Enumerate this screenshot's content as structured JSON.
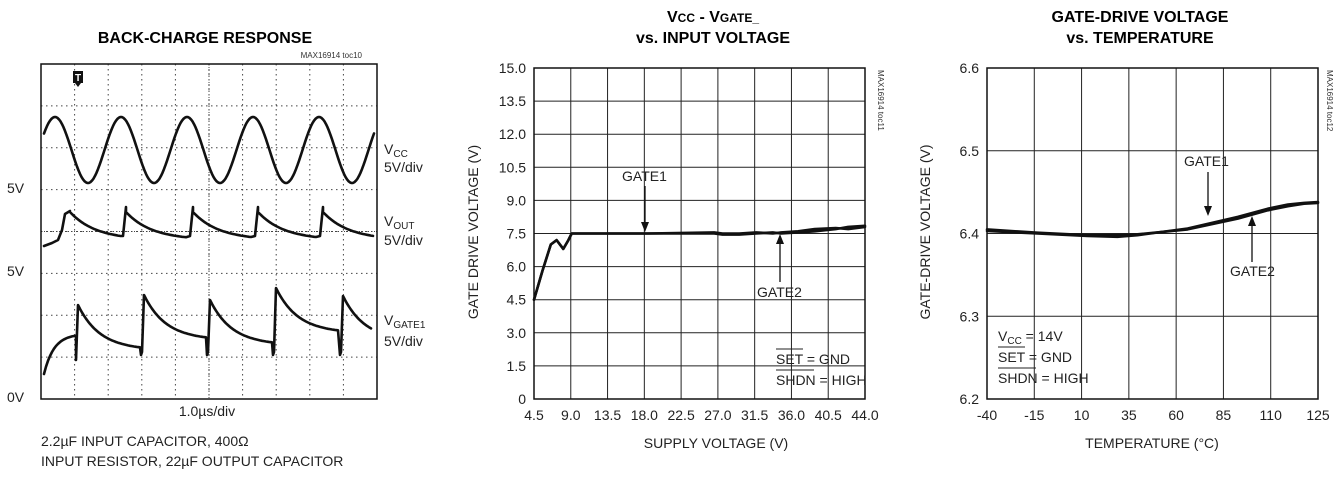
{
  "chart_data": [
    {
      "type": "line",
      "title": "BACK-CHARGE RESPONSE",
      "code": "MAX16914 toc10",
      "xlabel": "1.0µs/div",
      "caption": [
        "2.2µF INPUT CAPACITOR, 400Ω",
        "INPUT RESISTOR, 22µF OUTPUT CAPACITOR"
      ],
      "grid_divisions": {
        "x": 10,
        "y": 8
      },
      "marker": "T",
      "level_labels": [
        "5V",
        "5V",
        "0V"
      ],
      "series": [
        {
          "name": "VCC",
          "name_base": "V",
          "name_sub": "CC",
          "scale": "5V/div",
          "shape": "sine",
          "cycles": 5
        },
        {
          "name": "VOUT",
          "name_base": "V",
          "name_sub": "OUT",
          "scale": "5V/div",
          "shape": "sawtooth-decay",
          "cycles": 5
        },
        {
          "name": "VGATE1",
          "name_base": "V",
          "name_sub": "GATE1",
          "scale": "5V/div",
          "shape": "sawtooth-jump",
          "cycles": 5
        }
      ]
    },
    {
      "type": "line",
      "title_parts": [
        "V",
        "CC",
        " - V",
        "GATE_"
      ],
      "title_line2": "vs. INPUT VOLTAGE",
      "code": "MAX16914 toc11",
      "xlabel": "SUPPLY VOLTAGE (V)",
      "ylabel": "GATE DRIVE VOLTAGE (V)",
      "xlim": [
        4.5,
        44.0
      ],
      "ylim": [
        0,
        15.0
      ],
      "xticks": [
        "4.5",
        "9.0",
        "13.5",
        "18.0",
        "22.5",
        "27.0",
        "31.5",
        "36.0",
        "40.5",
        "44.0"
      ],
      "yticks": [
        "0",
        "1.5",
        "3.0",
        "4.5",
        "6.0",
        "7.5",
        "9.0",
        "10.5",
        "12.0",
        "13.5",
        "15.0"
      ],
      "grid": true,
      "series": [
        {
          "name": "GATE1",
          "x": [
            4.5,
            5.5,
            6.5,
            7.2,
            8.0,
            8.6,
            9.0,
            18.0,
            26.0,
            27.0,
            29.0,
            31.0,
            33.0,
            34.0,
            36.0,
            38.0,
            40.5,
            42.0,
            44.0
          ],
          "y": [
            4.5,
            5.8,
            7.0,
            7.2,
            6.8,
            7.2,
            7.5,
            7.5,
            7.5,
            7.45,
            7.45,
            7.5,
            7.55,
            7.5,
            7.55,
            7.6,
            7.7,
            7.8,
            7.85
          ]
        },
        {
          "name": "GATE2",
          "x": [
            4.5,
            5.5,
            6.5,
            7.2,
            8.0,
            8.6,
            9.0,
            18.0,
            26.0,
            27.0,
            29.0,
            31.0,
            33.0,
            34.0,
            36.0,
            38.0,
            40.5,
            42.0,
            44.0
          ],
          "y": [
            4.5,
            5.8,
            7.0,
            7.2,
            6.8,
            7.2,
            7.5,
            7.5,
            7.55,
            7.5,
            7.5,
            7.55,
            7.5,
            7.55,
            7.6,
            7.7,
            7.75,
            7.7,
            7.8
          ]
        }
      ],
      "annotations": {
        "gate1": "GATE1",
        "gate2": "GATE2",
        "note_set": "SET = GND",
        "note_shdn": "SHDN = HIGH"
      }
    },
    {
      "type": "line",
      "title": "GATE-DRIVE VOLTAGE",
      "title_line2": "vs. TEMPERATURE",
      "code": "MAX16914 toc12",
      "xlabel": "TEMPERATURE (°C)",
      "ylabel": "GATE-DRIVE VOLTAGE (V)",
      "xlim": [
        -40,
        125
      ],
      "ylim": [
        6.2,
        6.6
      ],
      "xticks": [
        "-40",
        "-15",
        "10",
        "35",
        "60",
        "85",
        "110",
        "125"
      ],
      "yticks": [
        "6.2",
        "6.3",
        "6.4",
        "6.5",
        "6.6"
      ],
      "grid": true,
      "series": [
        {
          "name": "GATE1",
          "x": [
            -40,
            -15,
            10,
            25,
            35,
            60,
            85,
            100,
            110,
            118,
            125
          ],
          "y": [
            6.405,
            6.401,
            6.398,
            6.398,
            6.399,
            6.405,
            6.418,
            6.428,
            6.433,
            6.436,
            6.437
          ]
        },
        {
          "name": "GATE2",
          "x": [
            -40,
            -15,
            10,
            25,
            35,
            60,
            85,
            100,
            110,
            118,
            125
          ],
          "y": [
            6.403,
            6.4,
            6.397,
            6.396,
            6.398,
            6.406,
            6.42,
            6.43,
            6.435,
            6.437,
            6.438
          ]
        }
      ],
      "annotations": {
        "gate1": "GATE1",
        "gate2": "GATE2",
        "note_vcc": "VCC = 14V",
        "note_vcc_base": "V",
        "note_vcc_sub": "CC",
        "note_vcc_rest": " = 14V",
        "note_set": "SET = GND",
        "note_shdn": "SHDN = HIGH"
      }
    }
  ]
}
